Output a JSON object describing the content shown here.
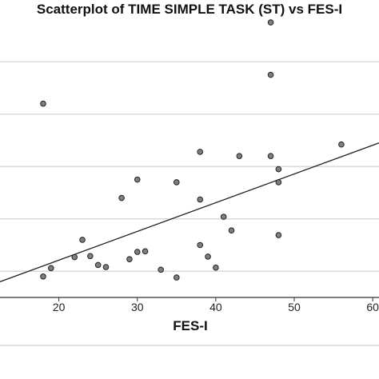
{
  "chart_data": {
    "type": "scatter",
    "title": "Scatterplot of TIME SIMPLE TASK (ST) vs FES-I",
    "xlabel": "FES-I",
    "ylabel": "",
    "x_ticks": [
      20,
      30,
      40,
      50,
      60
    ],
    "x_tick_labels": [
      "20",
      "30",
      "40",
      "50",
      "60"
    ],
    "xlim": [
      12.5,
      60.8
    ],
    "ylim": [
      0.5,
      5.95
    ],
    "y_gridlines": [
      1,
      2,
      3,
      4,
      5
    ],
    "y_tick_labels_visible": false,
    "grid": "horizontal",
    "points": {
      "x": [
        47,
        47,
        18,
        56,
        38,
        43,
        47,
        48,
        30,
        35,
        48,
        28,
        38,
        41,
        42,
        23,
        48,
        38,
        31,
        30,
        22,
        24,
        29,
        39,
        25,
        26,
        19,
        33,
        40,
        18,
        35
      ],
      "y": [
        5.75,
        4.75,
        4.2,
        3.42,
        3.28,
        3.2,
        3.2,
        2.95,
        2.75,
        2.7,
        2.7,
        2.4,
        2.37,
        2.04,
        1.78,
        1.6,
        1.69,
        1.5,
        1.38,
        1.37,
        1.27,
        1.29,
        1.23,
        1.28,
        1.12,
        1.08,
        1.06,
        1.03,
        1.07,
        0.9,
        0.88
      ]
    },
    "trendline": {
      "x": [
        12.5,
        60.8
      ],
      "y": [
        0.8,
        3.45
      ]
    },
    "colors": {
      "point_fill": "#7f7f7f",
      "point_stroke": "#222222",
      "line": "#222222",
      "grid": "#d9d9d9"
    }
  }
}
